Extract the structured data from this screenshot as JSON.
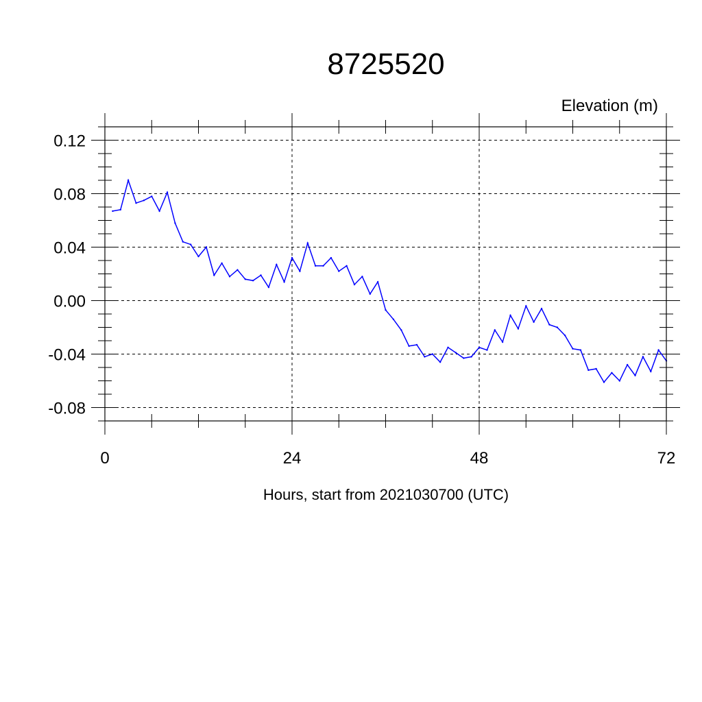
{
  "chart_data": {
    "type": "line",
    "title": "8725520",
    "ylabel": "Elevation (m)",
    "xlabel": "Hours, start from 2021030700 (UTC)",
    "xlim": [
      0,
      72
    ],
    "ylim": [
      -0.09,
      0.13
    ],
    "x_ticks": [
      0,
      24,
      48,
      72
    ],
    "x_tick_labels": [
      "0",
      "24",
      "48",
      "72"
    ],
    "x_minor_step": 6,
    "y_ticks": [
      -0.08,
      -0.04,
      0.0,
      0.04,
      0.08,
      0.12
    ],
    "y_tick_labels": [
      "-0.08",
      "-0.04",
      "0.00",
      "0.04",
      "0.08",
      "0.12"
    ],
    "y_minor_step": 0.01,
    "grid": true,
    "series": [
      {
        "color": "#0000ff",
        "x": [
          1,
          2,
          3,
          4,
          5,
          6,
          7,
          8,
          9,
          10,
          11,
          12,
          13,
          14,
          15,
          16,
          17,
          18,
          19,
          20,
          21,
          22,
          23,
          24,
          25,
          26,
          27,
          28,
          29,
          30,
          31,
          32,
          33,
          34,
          35,
          36,
          37,
          38,
          39,
          40,
          41,
          42,
          43,
          44,
          45,
          46,
          47,
          48,
          49,
          50,
          51,
          52,
          53,
          54,
          55,
          56,
          57,
          58,
          59,
          60,
          61,
          62,
          63,
          64,
          65,
          66,
          67,
          68,
          69,
          70,
          71,
          72
        ],
        "y": [
          0.067,
          0.068,
          0.09,
          0.073,
          0.075,
          0.078,
          0.067,
          0.081,
          0.058,
          0.044,
          0.042,
          0.033,
          0.04,
          0.019,
          0.028,
          0.018,
          0.023,
          0.016,
          0.015,
          0.019,
          0.01,
          0.027,
          0.014,
          0.032,
          0.022,
          0.043,
          0.026,
          0.026,
          0.032,
          0.022,
          0.026,
          0.012,
          0.018,
          0.005,
          0.014,
          -0.007,
          -0.014,
          -0.022,
          -0.034,
          -0.033,
          -0.042,
          -0.04,
          -0.046,
          -0.035,
          -0.039,
          -0.043,
          -0.042,
          -0.035,
          -0.037,
          -0.022,
          -0.031,
          -0.011,
          -0.021,
          -0.004,
          -0.016,
          -0.006,
          -0.018,
          -0.02,
          -0.026,
          -0.036,
          -0.037,
          -0.052,
          -0.051,
          -0.061,
          -0.054,
          -0.06,
          -0.048,
          -0.056,
          -0.042,
          -0.053,
          -0.037,
          -0.045
        ]
      }
    ]
  }
}
